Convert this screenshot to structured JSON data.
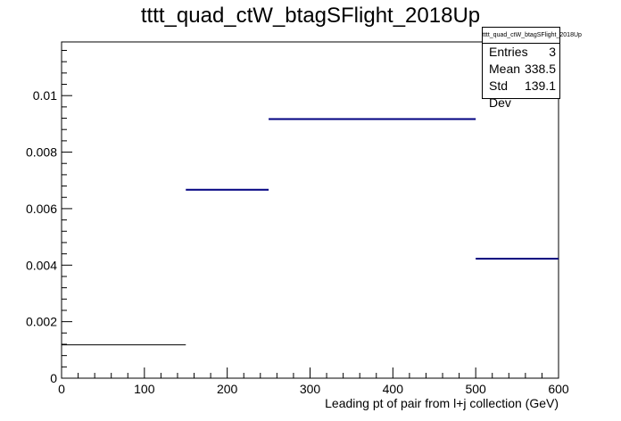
{
  "chart_data": {
    "type": "histogram",
    "title": "tttt_quad_ctW_btagSFlight_2018Up",
    "xlabel": "Leading pt of pair from l+j collection (GeV)",
    "ylabel": "",
    "xlim": [
      0,
      600
    ],
    "ylim": [
      0,
      0.0119
    ],
    "bins": [
      {
        "x0": 0,
        "x1": 150,
        "value": 0.00118
      },
      {
        "x0": 150,
        "x1": 250,
        "value": 0.00667
      },
      {
        "x0": 250,
        "x1": 500,
        "value": 0.00917
      },
      {
        "x0": 500,
        "x1": 600,
        "value": 0.00423
      }
    ],
    "line_colors": [
      "#000000",
      "#000080",
      "#000080",
      "#000080"
    ],
    "x_ticks": [
      0,
      100,
      200,
      300,
      400,
      500,
      600
    ],
    "y_ticks": [
      {
        "v": 0,
        "label": "0"
      },
      {
        "v": 0.002,
        "label": "0.002"
      },
      {
        "v": 0.004,
        "label": "0.004"
      },
      {
        "v": 0.006,
        "label": "0.006"
      },
      {
        "v": 0.008,
        "label": "0.008"
      },
      {
        "v": 0.01,
        "label": "0.01"
      }
    ],
    "grid": false
  },
  "stats_box": {
    "name": "tttt_quad_ctW_btagSFlight_2018Up",
    "rows": [
      {
        "label": "Entries",
        "value": "3"
      },
      {
        "label": "Mean",
        "value": "338.5"
      },
      {
        "label": "Std Dev",
        "value": "139.1"
      }
    ]
  }
}
